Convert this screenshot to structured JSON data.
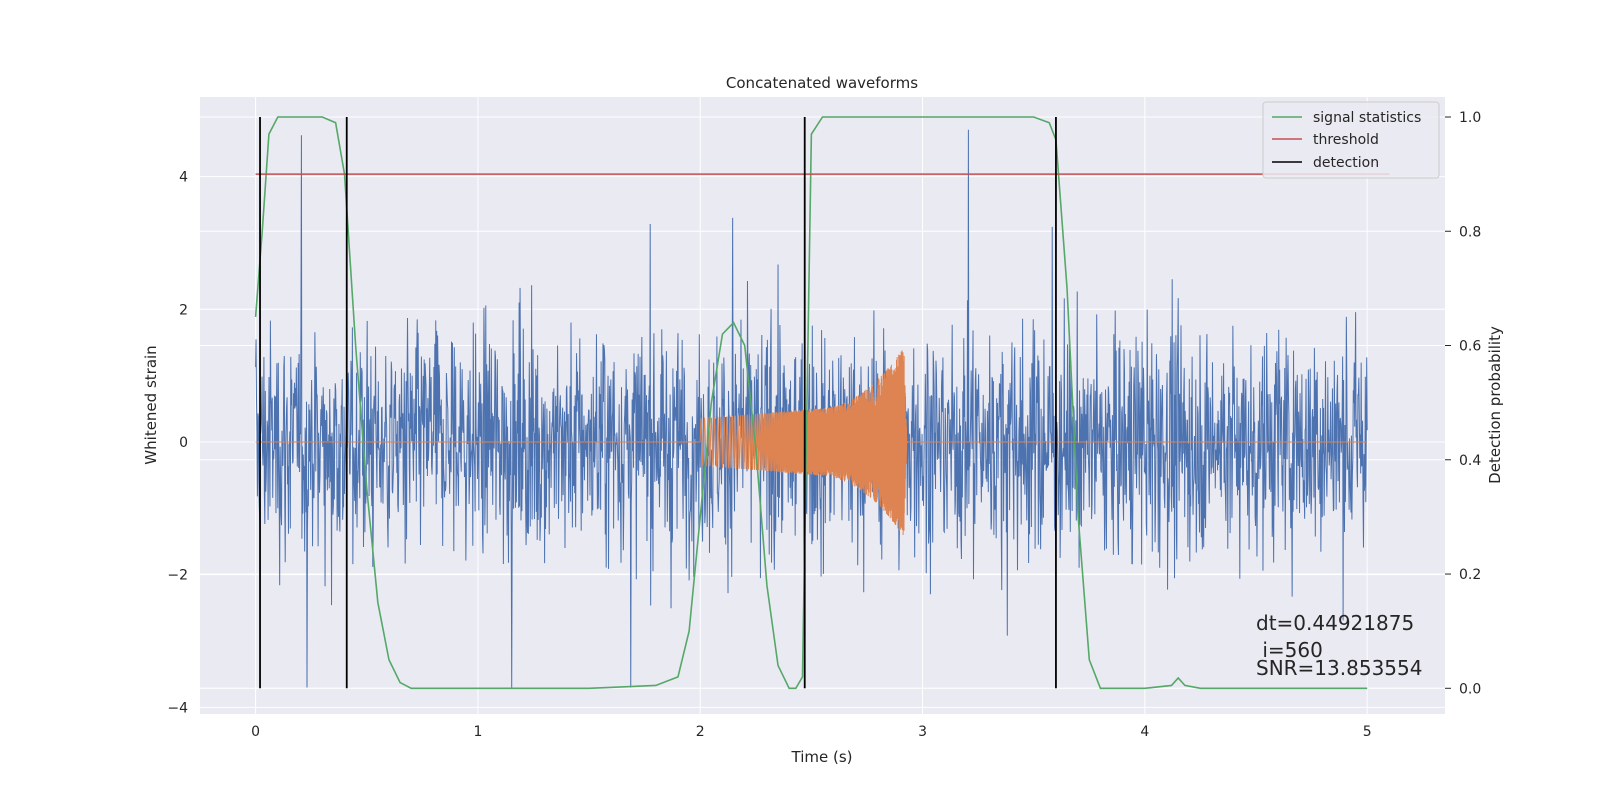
{
  "chart_data": {
    "type": "line",
    "title": "Concatenated waveforms",
    "xlabel": "Time (s)",
    "ylabel": "Whitened strain",
    "y2label": "Detection probability",
    "xlim": [
      -0.25,
      5.35
    ],
    "ylim": [
      -4.1,
      5.2
    ],
    "y2lim": [
      -0.045,
      1.035
    ],
    "xticks": [
      0,
      1,
      2,
      3,
      4,
      5
    ],
    "yticks": [
      -4,
      -2,
      0,
      2,
      4
    ],
    "y2ticks": [
      0.0,
      0.2,
      0.4,
      0.6,
      0.8,
      1.0
    ],
    "xtick_labels": [
      "0",
      "1",
      "2",
      "3",
      "4",
      "5"
    ],
    "ytick_labels": [
      "−4",
      "−2",
      "0",
      "2",
      "4"
    ],
    "y2tick_labels": [
      "0.0",
      "0.2",
      "0.4",
      "0.6",
      "0.8",
      "1.0"
    ],
    "grid": true,
    "legend_position": "top-right",
    "legend": [
      "signal statistics",
      "threshold",
      "detection"
    ],
    "colors": {
      "strain": "#4c72b0",
      "waveform": "#dd8452",
      "statistic": "#55a868",
      "threshold": "#c44e52",
      "detection": "#000000",
      "background": "#eaeaf2",
      "grid": "#ffffff"
    },
    "series": [
      {
        "name": "signal statistics",
        "axis": "right",
        "x": [
          0.0,
          0.03,
          0.06,
          0.1,
          0.2,
          0.3,
          0.36,
          0.4,
          0.45,
          0.5,
          0.55,
          0.6,
          0.65,
          0.7,
          0.8,
          1.0,
          1.5,
          1.8,
          1.9,
          1.95,
          2.0,
          2.05,
          2.1,
          2.15,
          2.2,
          2.25,
          2.3,
          2.35,
          2.4,
          2.43,
          2.46,
          2.5,
          2.55,
          2.6,
          3.0,
          3.5,
          3.57,
          3.6,
          3.65,
          3.7,
          3.75,
          3.8,
          4.0,
          4.12,
          4.15,
          4.18,
          4.25,
          4.5,
          5.0
        ],
        "y": [
          0.65,
          0.8,
          0.97,
          1.0,
          1.0,
          1.0,
          0.99,
          0.9,
          0.6,
          0.35,
          0.15,
          0.05,
          0.01,
          0.0,
          0.0,
          0.0,
          0.0,
          0.005,
          0.02,
          0.1,
          0.3,
          0.5,
          0.62,
          0.64,
          0.6,
          0.42,
          0.18,
          0.04,
          0.0,
          0.0,
          0.02,
          0.97,
          1.0,
          1.0,
          1.0,
          1.0,
          0.99,
          0.96,
          0.7,
          0.3,
          0.05,
          0.0,
          0.0,
          0.005,
          0.018,
          0.005,
          0.0,
          0.0,
          0.0
        ]
      },
      {
        "name": "threshold",
        "axis": "right",
        "x": [
          0.0,
          5.1
        ],
        "y": [
          0.9,
          0.9
        ]
      }
    ],
    "strain_noise": {
      "x_range": [
        0.0,
        5.0
      ],
      "typical_amplitude": 1.0,
      "extremes": [
        -3.7,
        4.8
      ]
    },
    "injected_waveform": {
      "x_range": [
        2.0,
        2.93
      ],
      "peak_amplitude": 1.7,
      "x": [
        2.0,
        2.5,
        2.9,
        2.93
      ],
      "amplitude": [
        0.35,
        0.5,
        1.5,
        0.0
      ]
    },
    "detections": [
      0.02,
      0.41,
      2.47,
      3.6
    ],
    "annotations": [
      "dt=0.44921875",
      " i=560",
      "SNR=13.853554"
    ]
  }
}
